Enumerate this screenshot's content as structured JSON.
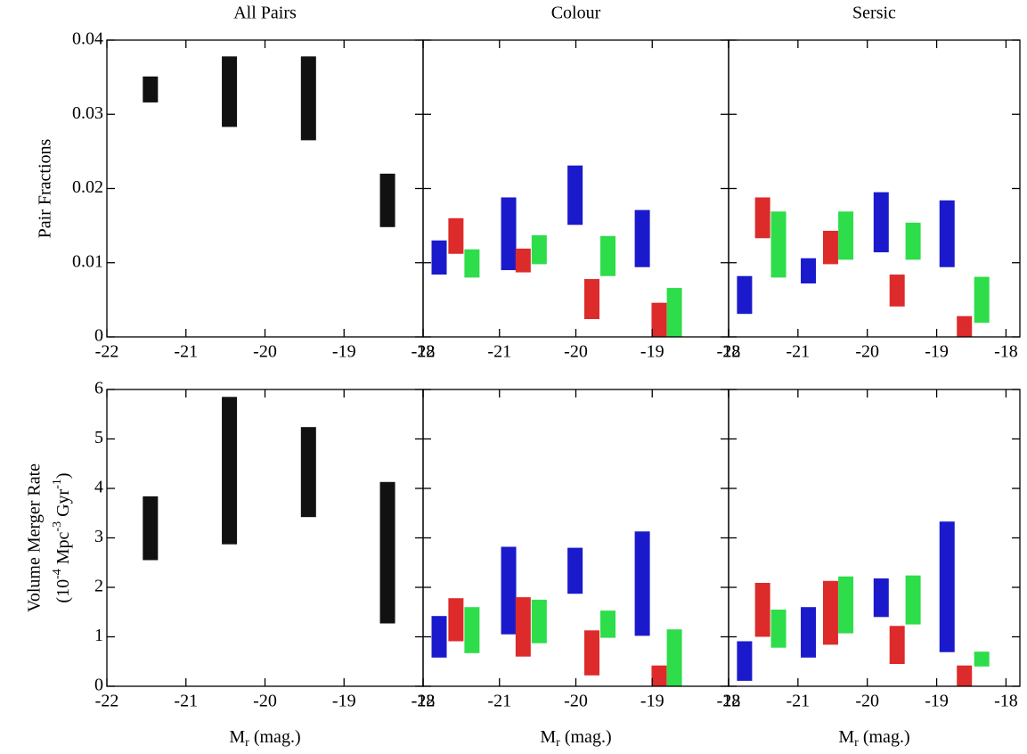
{
  "chart_data": [
    {
      "type": "range-bar",
      "title": "All Pairs",
      "ylabel": "Pair Fractions",
      "xlim": [
        -22,
        -18
      ],
      "xticks": [
        -22,
        -21,
        -20,
        -19,
        -18
      ],
      "ylim": [
        0,
        0.04
      ],
      "yticks": [
        0,
        0.01,
        0.02,
        0.03,
        0.04
      ],
      "ytick_labels": true,
      "series": [
        {
          "color": "#111111",
          "x": [
            -21.45,
            -20.45,
            -19.45,
            -18.45
          ],
          "low": [
            0.0316,
            0.0283,
            0.0265,
            0.0148
          ],
          "high": [
            0.0351,
            0.0378,
            0.0378,
            0.022
          ]
        }
      ]
    },
    {
      "type": "range-bar",
      "title": "Colour",
      "xlim": [
        -22,
        -18
      ],
      "xticks": [
        -22,
        -21,
        -20,
        -19,
        -18
      ],
      "ylim": [
        0,
        0.04
      ],
      "yticks": [
        0,
        0.01,
        0.02,
        0.03,
        0.04
      ],
      "ytick_labels": false,
      "series": [
        {
          "color": "#1a1acc",
          "x": [
            -21.79,
            -20.88,
            -20.01,
            -19.13
          ],
          "low": [
            0.0084,
            0.009,
            0.0151,
            0.0094
          ],
          "high": [
            0.013,
            0.0188,
            0.0231,
            0.0171
          ]
        },
        {
          "color": "#dd2a2a",
          "x": [
            -21.57,
            -20.69,
            -19.79,
            -18.91
          ],
          "low": [
            0.0112,
            0.0087,
            0.0024,
            0
          ],
          "high": [
            0.016,
            0.0119,
            0.0078,
            0.0046
          ]
        },
        {
          "color": "#2edd4a",
          "x": [
            -21.36,
            -20.48,
            -19.58,
            -18.71
          ],
          "low": [
            0.008,
            0.0098,
            0.0082,
            0
          ],
          "high": [
            0.0118,
            0.0137,
            0.0136,
            0.0066
          ]
        }
      ]
    },
    {
      "type": "range-bar",
      "title": "Sersic",
      "xlim": [
        -22,
        -17.8
      ],
      "xticks": [
        -22,
        -21,
        -20,
        -19,
        -18
      ],
      "ylim": [
        0,
        0.04
      ],
      "yticks": [
        0,
        0.01,
        0.02,
        0.03,
        0.04
      ],
      "ytick_labels": false,
      "series": [
        {
          "color": "#1a1acc",
          "x": [
            -21.77,
            -20.85,
            -19.8,
            -18.85
          ],
          "low": [
            0.0031,
            0.0072,
            0.0114,
            0.0094
          ],
          "high": [
            0.0082,
            0.0106,
            0.0195,
            0.0184
          ]
        },
        {
          "color": "#dd2a2a",
          "x": [
            -21.51,
            -20.53,
            -19.57,
            -18.6
          ],
          "low": [
            0.0133,
            0.0098,
            0.0041,
            0
          ],
          "high": [
            0.0188,
            0.0143,
            0.0084,
            0.0028
          ]
        },
        {
          "color": "#2edd4a",
          "x": [
            -21.28,
            -20.31,
            -19.34,
            -18.35
          ],
          "low": [
            0.008,
            0.0104,
            0.0104,
            0.0019
          ],
          "high": [
            0.0169,
            0.0169,
            0.0154,
            0.0081
          ]
        }
      ]
    },
    {
      "type": "range-bar",
      "ylabel": "Volume Merger Rate",
      "yunit": [
        "(10",
        "-4",
        " Mpc",
        "-3",
        " Gyr",
        "-1",
        ")"
      ],
      "xlabel": [
        "M",
        "r",
        " (mag.)"
      ],
      "xlim": [
        -22,
        -18
      ],
      "xticks": [
        -22,
        -21,
        -20,
        -19,
        -18
      ],
      "ylim": [
        0,
        6
      ],
      "yticks": [
        0,
        1,
        2,
        3,
        4,
        5,
        6
      ],
      "ytick_labels": true,
      "series": [
        {
          "color": "#111111",
          "x": [
            -21.45,
            -20.45,
            -19.45,
            -18.45
          ],
          "low": [
            2.55,
            2.87,
            3.42,
            1.27
          ],
          "high": [
            3.84,
            5.85,
            5.24,
            4.13
          ]
        }
      ]
    },
    {
      "type": "range-bar",
      "xlabel": [
        "M",
        "r",
        " (mag.)"
      ],
      "xlim": [
        -22,
        -18
      ],
      "xticks": [
        -22,
        -21,
        -20,
        -19,
        -18
      ],
      "ylim": [
        0,
        6
      ],
      "yticks": [
        0,
        1,
        2,
        3,
        4,
        5,
        6
      ],
      "ytick_labels": false,
      "series": [
        {
          "color": "#1a1acc",
          "x": [
            -21.79,
            -20.88,
            -20.01,
            -19.13
          ],
          "low": [
            0.58,
            1.05,
            1.87,
            1.02
          ],
          "high": [
            1.42,
            2.82,
            2.8,
            3.13
          ]
        },
        {
          "color": "#dd2a2a",
          "x": [
            -21.57,
            -20.69,
            -19.79,
            -18.91
          ],
          "low": [
            0.91,
            0.6,
            0.22,
            0
          ],
          "high": [
            1.78,
            1.8,
            1.13,
            0.42
          ]
        },
        {
          "color": "#2edd4a",
          "x": [
            -21.36,
            -20.48,
            -19.58,
            -18.71
          ],
          "low": [
            0.67,
            0.87,
            0.98,
            0
          ],
          "high": [
            1.6,
            1.75,
            1.53,
            1.15
          ]
        }
      ]
    },
    {
      "type": "range-bar",
      "xlabel": [
        "M",
        "r",
        " (mag.)"
      ],
      "xlim": [
        -22,
        -17.8
      ],
      "xticks": [
        -22,
        -21,
        -20,
        -19,
        -18
      ],
      "ylim": [
        0,
        6
      ],
      "yticks": [
        0,
        1,
        2,
        3,
        4,
        5,
        6
      ],
      "ytick_labels": false,
      "series": [
        {
          "color": "#1a1acc",
          "x": [
            -21.77,
            -20.85,
            -19.8,
            -18.85
          ],
          "low": [
            0.11,
            0.58,
            1.4,
            0.69
          ],
          "high": [
            0.91,
            1.6,
            2.18,
            3.33
          ]
        },
        {
          "color": "#dd2a2a",
          "x": [
            -21.51,
            -20.53,
            -19.57,
            -18.6
          ],
          "low": [
            1.0,
            0.84,
            0.45,
            0
          ],
          "high": [
            2.09,
            2.13,
            1.22,
            0.42
          ]
        },
        {
          "color": "#2edd4a",
          "x": [
            -21.28,
            -20.31,
            -19.34,
            -18.35
          ],
          "low": [
            0.78,
            1.07,
            1.25,
            0.4
          ],
          "high": [
            1.55,
            2.22,
            2.24,
            0.7
          ]
        }
      ]
    }
  ]
}
